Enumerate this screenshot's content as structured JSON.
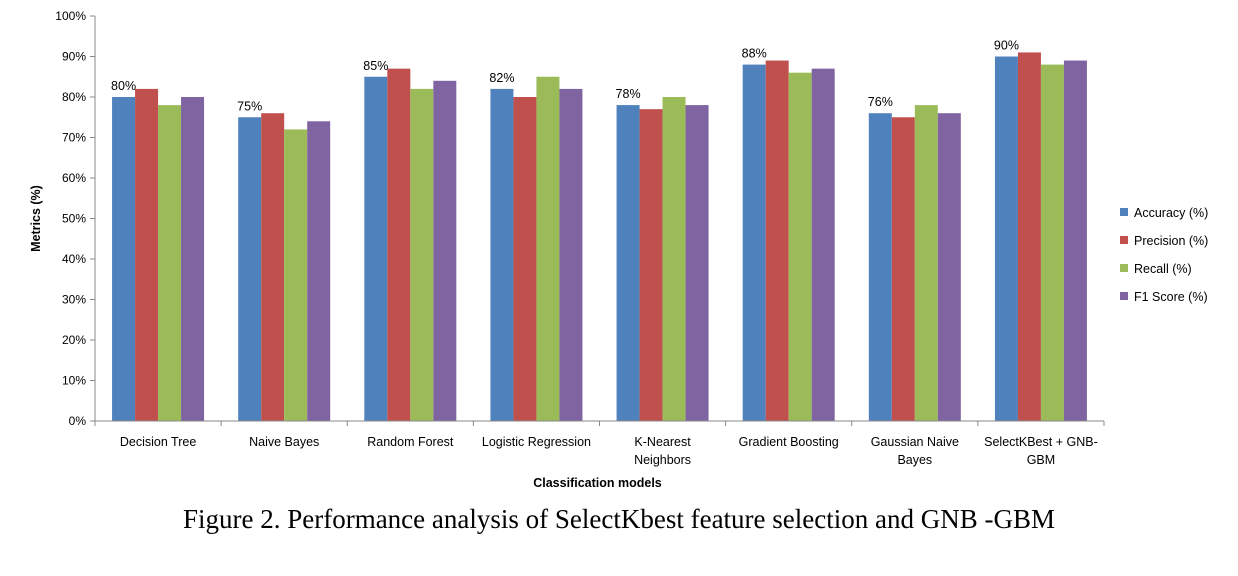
{
  "chart_data": {
    "type": "bar",
    "xlabel": "Classification  models",
    "ylabel": "Metrics (%)",
    "ylim": [
      0,
      100
    ],
    "ytick_step": 10,
    "ytick_suffix": "%",
    "grid": false,
    "legend_position": "right",
    "categories": [
      [
        "Decision Tree"
      ],
      [
        "Naive Bayes"
      ],
      [
        "Random Forest"
      ],
      [
        "Logistic Regression"
      ],
      [
        "K-Nearest",
        "Neighbors"
      ],
      [
        "Gradient Boosting"
      ],
      [
        "Gaussian Naive",
        "Bayes"
      ],
      [
        "SelectKBest + GNB-",
        "GBM"
      ]
    ],
    "series": [
      {
        "name": "Accuracy (%)",
        "color": "#4F81BD",
        "values": [
          80,
          75,
          85,
          82,
          78,
          88,
          76,
          90
        ]
      },
      {
        "name": "Precision (%)",
        "color": "#C0504D",
        "values": [
          82,
          76,
          87,
          80,
          77,
          89,
          75,
          91
        ]
      },
      {
        "name": "Recall (%)",
        "color": "#9BBB59",
        "values": [
          78,
          72,
          82,
          85,
          80,
          86,
          78,
          88
        ]
      },
      {
        "name": "F1 Score (%)",
        "color": "#8064A2",
        "values": [
          80,
          74,
          84,
          82,
          78,
          87,
          76,
          89
        ]
      }
    ],
    "data_labels": [
      "80%",
      "75%",
      "85%",
      "82%",
      "78%",
      "88%",
      "76%",
      "90%"
    ]
  },
  "caption": "Figure 2. Performance analysis of SelectKbest feature selection and GNB -GBM"
}
